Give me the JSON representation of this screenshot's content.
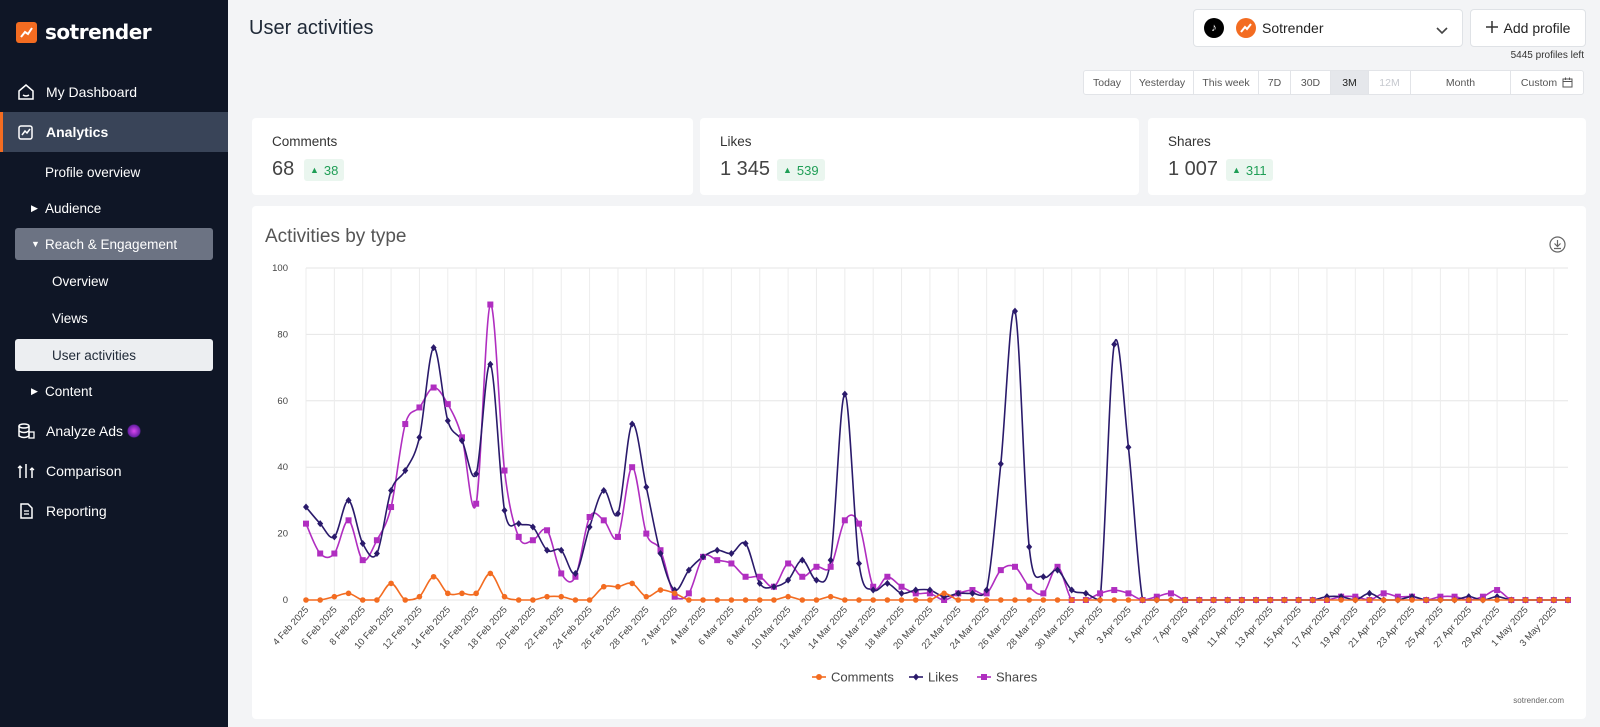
{
  "brand": {
    "name": "sotrender",
    "accent": "#f36c21"
  },
  "sidebar": {
    "items": [
      {
        "label": "My Dashboard",
        "icon": "home-icon"
      },
      {
        "label": "Analytics",
        "icon": "analytics-icon"
      },
      {
        "label": "Analyze Ads",
        "icon": "ads-icon"
      },
      {
        "label": "Comparison",
        "icon": "comparison-icon"
      },
      {
        "label": "Reporting",
        "icon": "reporting-icon"
      }
    ],
    "analytics_sub": {
      "profile_overview": "Profile overview",
      "audience": "Audience",
      "reach_engagement": "Reach & Engagement",
      "overview": "Overview",
      "views": "Views",
      "user_activities": "User activities",
      "content": "Content"
    }
  },
  "header": {
    "title": "User activities",
    "profile_name": "Sotrender",
    "add_profile_label": "Add profile",
    "profiles_left": "5445 profiles left"
  },
  "date_range": {
    "options": [
      "Today",
      "Yesterday",
      "This week",
      "7D",
      "30D",
      "3M",
      "12M",
      "Month",
      "Custom"
    ],
    "selected": "3M",
    "disabled": "12M"
  },
  "stats": [
    {
      "label": "Comments",
      "value": "68",
      "delta": "38"
    },
    {
      "label": "Likes",
      "value": "1 345",
      "delta": "539"
    },
    {
      "label": "Shares",
      "value": "1 007",
      "delta": "311"
    }
  ],
  "chart_card": {
    "title": "Activities by type",
    "watermark": "sotrender.com"
  },
  "chart_data": {
    "type": "line",
    "title": "Activities by type",
    "xlabel": "",
    "ylabel": "",
    "ylim": [
      0,
      100
    ],
    "yticks": [
      0,
      20,
      40,
      60,
      80,
      100
    ],
    "x_start": "4 Feb 2025",
    "x_end": "4 May 2025",
    "tick_labels": [
      "4 Feb 2025",
      "6 Feb 2025",
      "8 Feb 2025",
      "10 Feb 2025",
      "12 Feb 2025",
      "14 Feb 2025",
      "16 Feb 2025",
      "18 Feb 2025",
      "20 Feb 2025",
      "22 Feb 2025",
      "24 Feb 2025",
      "26 Feb 2025",
      "28 Feb 2025",
      "2 Mar 2025",
      "4 Mar 2025",
      "6 Mar 2025",
      "8 Mar 2025",
      "10 Mar 2025",
      "12 Mar 2025",
      "14 Mar 2025",
      "16 Mar 2025",
      "18 Mar 2025",
      "20 Mar 2025",
      "22 Mar 2025",
      "24 Mar 2025",
      "26 Mar 2025",
      "28 Mar 2025",
      "30 Mar 2025",
      "1 Apr 2025",
      "3 Apr 2025",
      "5 Apr 2025",
      "7 Apr 2025",
      "9 Apr 2025",
      "11 Apr 2025",
      "13 Apr 2025",
      "15 Apr 2025",
      "17 Apr 2025",
      "19 Apr 2025",
      "21 Apr 2025",
      "23 Apr 2025",
      "25 Apr 2025",
      "27 Apr 2025",
      "29 Apr 2025",
      "1 May 2025",
      "3 May 2025"
    ],
    "grid": true,
    "legend_position": "bottom",
    "series": [
      {
        "name": "Comments",
        "color": "#f36c21",
        "marker": "circle",
        "values": [
          0,
          0,
          1,
          2,
          0,
          0,
          5,
          0,
          1,
          7,
          2,
          2,
          2,
          8,
          1,
          0,
          0,
          1,
          1,
          0,
          0,
          4,
          4,
          5,
          1,
          3,
          2,
          0,
          0,
          0,
          0,
          0,
          0,
          0,
          1,
          0,
          0,
          1,
          0,
          0,
          0,
          0,
          0,
          0,
          0,
          2,
          0,
          0,
          0,
          0,
          0,
          0,
          0,
          0,
          0,
          0,
          0,
          0,
          0,
          0,
          0,
          0,
          0,
          0,
          0,
          0,
          0,
          0,
          0,
          0,
          0,
          0,
          0,
          0,
          0,
          0,
          0,
          0,
          0,
          0,
          0,
          0,
          0,
          0,
          0,
          0,
          0,
          0,
          0,
          0
        ]
      },
      {
        "name": "Likes",
        "color": "#2a1a6b",
        "marker": "diamond",
        "values": [
          28,
          23,
          19,
          30,
          17,
          14,
          33,
          39,
          49,
          76,
          54,
          48,
          38,
          71,
          27,
          23,
          22,
          15,
          15,
          8,
          22,
          33,
          26,
          53,
          34,
          14,
          3,
          9,
          13,
          15,
          14,
          17,
          5,
          4,
          6,
          12,
          6,
          12,
          62,
          11,
          3,
          5,
          2,
          3,
          3,
          1,
          2,
          2,
          3,
          41,
          87,
          16,
          7,
          9,
          3,
          2,
          0,
          77,
          46,
          0,
          0,
          0,
          0,
          0,
          0,
          0,
          0,
          0,
          0,
          0,
          0,
          0,
          1,
          1,
          0,
          2,
          0,
          0,
          1,
          0,
          0,
          0,
          1,
          0,
          1,
          0,
          0,
          0,
          0,
          0
        ]
      },
      {
        "name": "Shares",
        "color": "#b02ec0",
        "marker": "square",
        "values": [
          23,
          14,
          14,
          24,
          12,
          18,
          28,
          53,
          58,
          64,
          59,
          49,
          29,
          89,
          39,
          19,
          18,
          21,
          8,
          7,
          25,
          24,
          19,
          40,
          20,
          15,
          1,
          2,
          13,
          12,
          11,
          7,
          7,
          4,
          11,
          7,
          10,
          10,
          24,
          23,
          4,
          7,
          4,
          2,
          2,
          0,
          2,
          3,
          2,
          9,
          10,
          4,
          2,
          10,
          0,
          0,
          2,
          3,
          2,
          0,
          1,
          2,
          0,
          0,
          0,
          0,
          0,
          0,
          0,
          0,
          0,
          0,
          0,
          1,
          1,
          0,
          2,
          1,
          1,
          0,
          1,
          1,
          0,
          1,
          3,
          0,
          0,
          0,
          0,
          0
        ]
      }
    ]
  }
}
